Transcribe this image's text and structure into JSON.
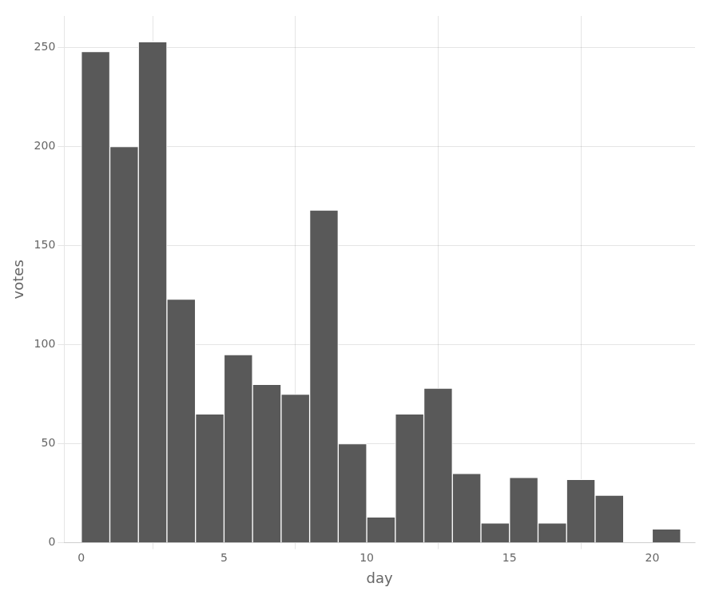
{
  "chart_data": {
    "type": "histogram",
    "xlabel": "day",
    "ylabel": "votes",
    "bins": [
      0,
      1,
      2,
      3,
      4,
      5,
      6,
      7,
      8,
      9,
      10,
      11,
      12,
      13,
      14,
      15,
      16,
      17,
      18,
      19,
      20,
      21
    ],
    "values": [
      248,
      200,
      253,
      123,
      65,
      95,
      80,
      75,
      168,
      50,
      13,
      65,
      78,
      35,
      10,
      33,
      10,
      32,
      24,
      0,
      7
    ],
    "color": "#595959",
    "xlim": [
      -0.6,
      21.5
    ],
    "xticks": [
      0,
      5,
      10,
      15,
      20
    ],
    "ylim": [
      0,
      266
    ],
    "yticks": [
      0,
      50,
      100,
      150,
      200,
      250
    ],
    "grid": true
  }
}
